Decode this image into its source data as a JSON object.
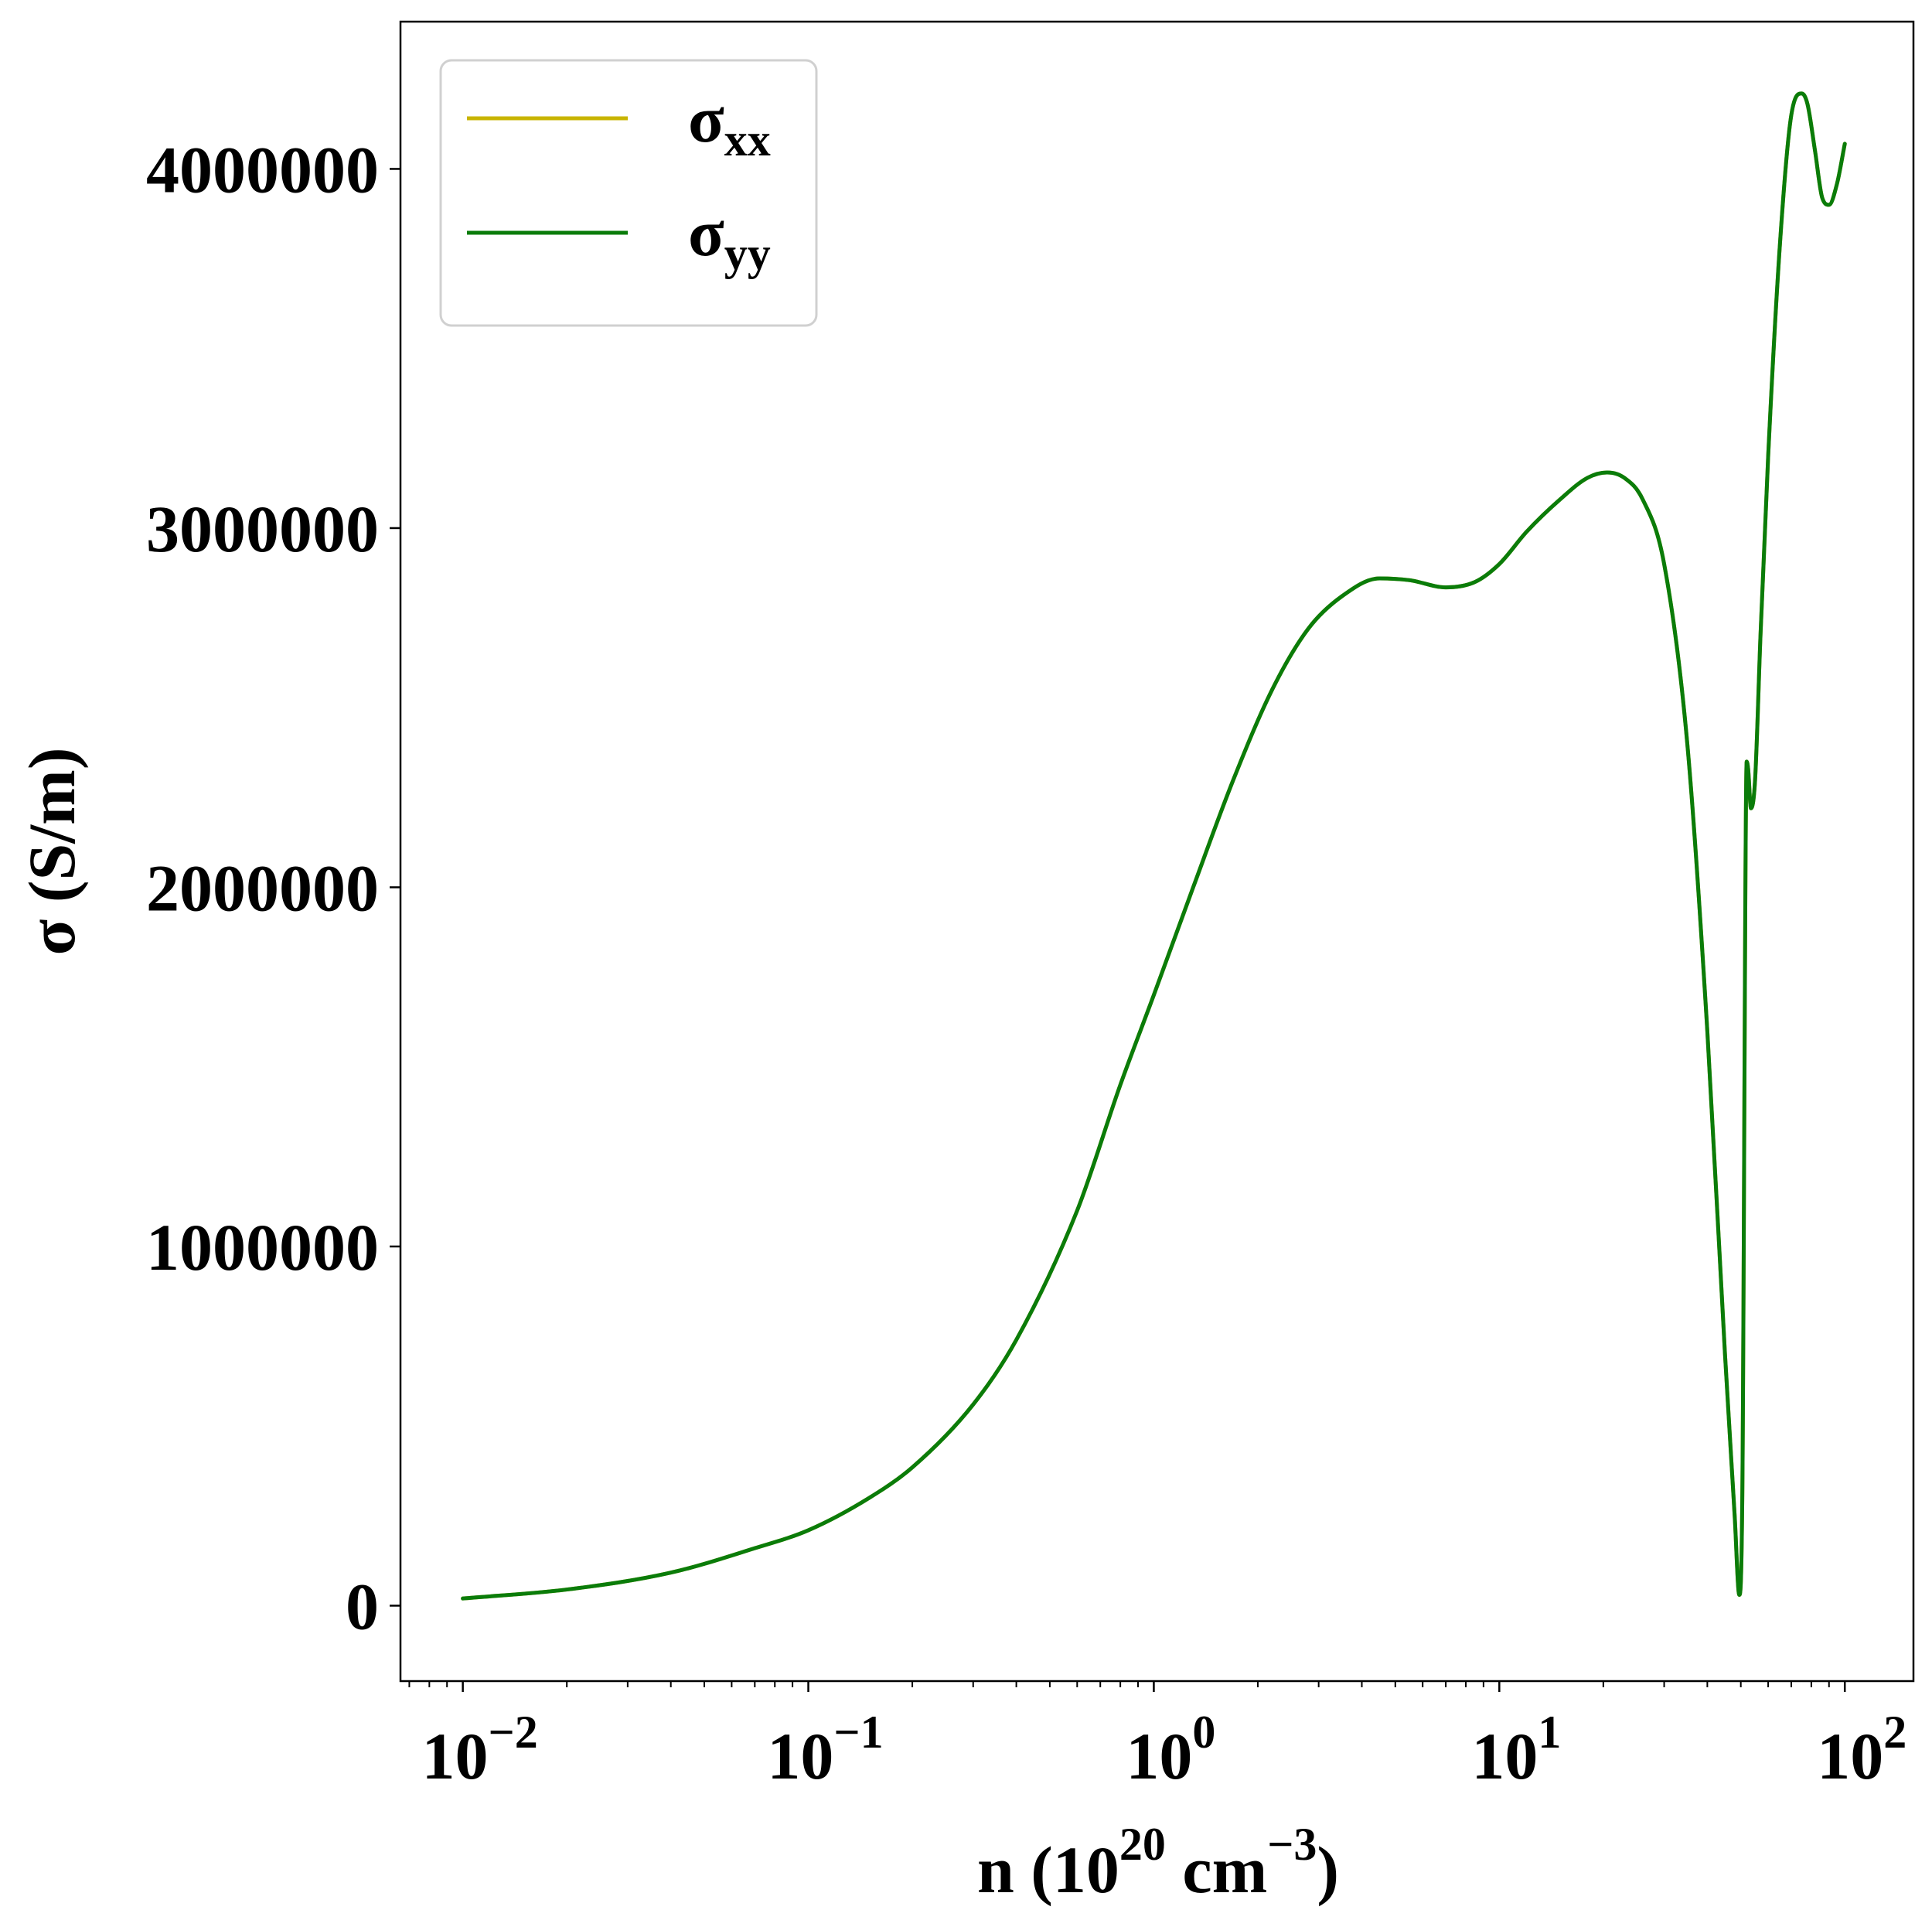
{
  "chart_data": {
    "type": "line",
    "title": "",
    "xlabel": "n (10",
    "xlabel_sup1": "20",
    "xlabel_mid": " cm",
    "xlabel_sup2": "−3",
    "xlabel_end": ")",
    "ylabel": "σ (S/m)",
    "xscale": "log",
    "xlim": [
      0.0066,
      158
    ],
    "ylim": [
      -210000,
      4410000
    ],
    "y_ticks": [
      {
        "value": 0,
        "label": "0"
      },
      {
        "value": 1000000,
        "label": "1000000"
      },
      {
        "value": 2000000,
        "label": "2000000"
      },
      {
        "value": 3000000,
        "label": "3000000"
      },
      {
        "value": 4000000,
        "label": "4000000"
      }
    ],
    "x_ticks": [
      {
        "value": 0.01,
        "base": "10",
        "exp": "−2"
      },
      {
        "value": 0.1,
        "base": "10",
        "exp": "−1"
      },
      {
        "value": 1,
        "base": "10",
        "exp": "0"
      },
      {
        "value": 10,
        "base": "10",
        "exp": "1"
      },
      {
        "value": 100,
        "base": "10",
        "exp": "2"
      }
    ],
    "grid": false,
    "legend_position": "top-left",
    "series": [
      {
        "name": "σ",
        "subscript": "xx",
        "color": "#c8b400",
        "x": [
          0.01,
          0.02,
          0.04,
          0.07,
          0.1,
          0.15,
          0.2,
          0.3,
          0.4,
          0.6,
          0.8,
          1.0,
          1.3,
          1.7,
          2.2,
          2.8,
          3.5,
          4.5,
          5.5,
          7.0,
          8.5,
          10,
          12,
          15,
          18,
          20.5,
          23,
          26,
          30,
          35,
          40,
          45,
          48,
          49.5,
          50.5,
          52,
          52.5,
          53.5,
          55,
          57,
          60,
          65,
          70,
          75,
          78,
          82,
          86,
          90,
          95,
          100
        ],
        "y": [
          20000,
          45000,
          92000,
          160000,
          210000,
          300000,
          385000,
          560000,
          740000,
          1100000,
          1450000,
          1700000,
          2000000,
          2300000,
          2550000,
          2720000,
          2810000,
          2860000,
          2855000,
          2835000,
          2850000,
          2900000,
          2990000,
          3080000,
          3140000,
          3155000,
          3140000,
          3080000,
          2900000,
          2400000,
          1600000,
          700000,
          250000,
          30000,
          300000,
          2350000,
          2330000,
          2220000,
          2300000,
          2700000,
          3200000,
          3800000,
          4150000,
          4210000,
          4180000,
          4050000,
          3920000,
          3900000,
          3960000,
          4070000
        ]
      },
      {
        "name": "σ",
        "subscript": "yy",
        "color": "#0a7c0a",
        "x": [
          0.01,
          0.02,
          0.04,
          0.07,
          0.1,
          0.15,
          0.2,
          0.3,
          0.4,
          0.6,
          0.8,
          1.0,
          1.3,
          1.7,
          2.2,
          2.8,
          3.5,
          4.5,
          5.5,
          7.0,
          8.5,
          10,
          12,
          15,
          18,
          20.5,
          23,
          26,
          30,
          35,
          40,
          45,
          48,
          49.5,
          50.5,
          52,
          52.5,
          53.5,
          55,
          57,
          60,
          65,
          70,
          75,
          78,
          82,
          86,
          90,
          95,
          100
        ],
        "y": [
          20000,
          45000,
          92000,
          160000,
          210000,
          300000,
          385000,
          560000,
          740000,
          1100000,
          1450000,
          1700000,
          2000000,
          2300000,
          2550000,
          2720000,
          2810000,
          2860000,
          2855000,
          2835000,
          2850000,
          2900000,
          2990000,
          3080000,
          3140000,
          3155000,
          3140000,
          3080000,
          2900000,
          2400000,
          1600000,
          700000,
          250000,
          30000,
          300000,
          2350000,
          2330000,
          2220000,
          2300000,
          2700000,
          3200000,
          3800000,
          4150000,
          4210000,
          4180000,
          4050000,
          3920000,
          3900000,
          3960000,
          4070000
        ]
      }
    ]
  }
}
